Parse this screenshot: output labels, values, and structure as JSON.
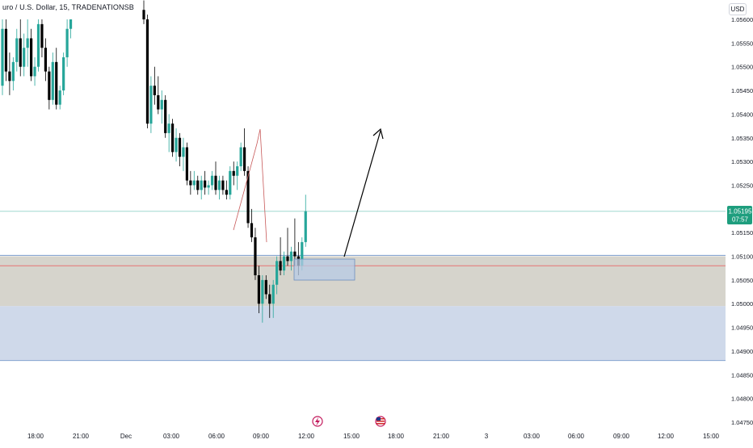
{
  "header": {
    "symbol_title": "uro / U.S. Dollar, 15, TRADENATIONSB",
    "currency": "USD"
  },
  "colors": {
    "up": "#26a69a",
    "down": "#000000",
    "current_price_line": "#9fd8cf",
    "current_price_badge": "#1e9e7e",
    "support_zone_fill": "#cfd9ea",
    "grey_zone_fill": "#d6d4cc",
    "red_line": "#e57373",
    "entry_box_fill": "#b7cbe6",
    "entry_box_stroke": "#6f8fbf",
    "arrow": "#000000"
  },
  "price_axis": {
    "labels": [
      "1.05600",
      "1.05550",
      "1.05500",
      "1.05450",
      "1.05400",
      "1.05350",
      "1.05300",
      "1.05250",
      "1.05150",
      "1.05100",
      "1.05050",
      "1.05000",
      "1.04950",
      "1.04900",
      "1.04850",
      "1.04800",
      "1.04750"
    ],
    "current_price": "1.05195",
    "countdown": "07:57"
  },
  "time_axis": {
    "labels": [
      "18:00",
      "21:00",
      "Dec",
      "03:00",
      "06:00",
      "09:00",
      "12:00",
      "15:00",
      "18:00",
      "21:00",
      "3",
      "03:00",
      "06:00",
      "09:00",
      "12:00",
      "15:00"
    ]
  },
  "event_icons": [
    "lightning-event-icon",
    "us-flag-event-icon"
  ],
  "chart_data": {
    "type": "candlestick",
    "instrument": "uro / U.S. Dollar",
    "interval": "15",
    "ylim": [
      1.0472,
      1.0565
    ],
    "current_price": 1.05195,
    "levels": {
      "support_zone": [
        1.0488,
        1.04995
      ],
      "grey_zone": [
        1.04995,
        1.051
      ],
      "red_line": 1.0508,
      "upper_blue_line": 1.05102
    },
    "candles": [
      [
        1.0546,
        1.056,
        1.0544,
        1.0558
      ],
      [
        1.0558,
        1.056,
        1.0547,
        1.0549
      ],
      [
        1.0549,
        1.0553,
        1.0544,
        1.0547
      ],
      [
        1.0547,
        1.0552,
        1.0545,
        1.0551
      ],
      [
        1.0551,
        1.0558,
        1.0549,
        1.0556
      ],
      [
        1.0556,
        1.056,
        1.0548,
        1.055
      ],
      [
        1.055,
        1.0557,
        1.0548,
        1.0554
      ],
      [
        1.0554,
        1.056,
        1.055,
        1.0556
      ],
      [
        1.0556,
        1.0558,
        1.0547,
        1.0548
      ],
      [
        1.0548,
        1.0552,
        1.0546,
        1.055
      ],
      [
        1.055,
        1.056,
        1.0549,
        1.0559
      ],
      [
        1.0559,
        1.056,
        1.0552,
        1.0554
      ],
      [
        1.0554,
        1.0556,
        1.0547,
        1.0549
      ],
      [
        1.0549,
        1.055,
        1.0541,
        1.0543
      ],
      [
        1.0543,
        1.0553,
        1.0542,
        1.0551
      ],
      [
        1.0551,
        1.0554,
        1.0541,
        1.0542
      ],
      [
        1.0542,
        1.0546,
        1.0541,
        1.0545
      ],
      [
        1.0545,
        1.0553,
        1.0544,
        1.0552
      ],
      [
        1.0552,
        1.056,
        1.055,
        1.0558
      ],
      [
        1.0558,
        1.056,
        1.0556,
        1.056
      ],
      [
        1.0562,
        1.0564,
        1.0559,
        1.056
      ],
      [
        1.056,
        1.0561,
        1.0537,
        1.0538
      ],
      [
        1.0538,
        1.0548,
        1.0536,
        1.0546
      ],
      [
        1.0546,
        1.055,
        1.0542,
        1.0544
      ],
      [
        1.0544,
        1.0548,
        1.054,
        1.0541
      ],
      [
        1.0541,
        1.0545,
        1.0538,
        1.0543
      ],
      [
        1.0543,
        1.0544,
        1.0535,
        1.0536
      ],
      [
        1.0536,
        1.054,
        1.0532,
        1.0538
      ],
      [
        1.0538,
        1.0539,
        1.0531,
        1.0532
      ],
      [
        1.0532,
        1.0537,
        1.053,
        1.0535
      ],
      [
        1.0535,
        1.0536,
        1.0529,
        1.0531
      ],
      [
        1.0531,
        1.0535,
        1.0528,
        1.0533
      ],
      [
        1.0533,
        1.0534,
        1.0525,
        1.0526
      ],
      [
        1.0526,
        1.0528,
        1.0523,
        1.0525
      ],
      [
        1.0525,
        1.0528,
        1.0524,
        1.0526
      ],
      [
        1.0526,
        1.0527,
        1.0523,
        1.0524
      ],
      [
        1.0524,
        1.0527,
        1.0522,
        1.0526
      ],
      [
        1.0526,
        1.0528,
        1.0523,
        1.05245
      ],
      [
        1.05245,
        1.0526,
        1.0523,
        1.0525
      ],
      [
        1.0525,
        1.0528,
        1.0524,
        1.0527
      ],
      [
        1.0527,
        1.053,
        1.0523,
        1.0524
      ],
      [
        1.0524,
        1.0527,
        1.0522,
        1.0526
      ],
      [
        1.0526,
        1.0527,
        1.0523,
        1.0524
      ],
      [
        1.0524,
        1.0526,
        1.0522,
        1.0523
      ],
      [
        1.0523,
        1.0529,
        1.0522,
        1.0528
      ],
      [
        1.0528,
        1.053,
        1.0525,
        1.0527
      ],
      [
        1.0527,
        1.053,
        1.0524,
        1.0529
      ],
      [
        1.0529,
        1.0534,
        1.0528,
        1.0533
      ],
      [
        1.0533,
        1.0537,
        1.0527,
        1.0528
      ],
      [
        1.0528,
        1.0529,
        1.0516,
        1.0517
      ],
      [
        1.0517,
        1.052,
        1.0513,
        1.0514
      ],
      [
        1.0514,
        1.0516,
        1.0505,
        1.0506
      ],
      [
        1.0506,
        1.0508,
        1.0498,
        1.05
      ],
      [
        1.05,
        1.0506,
        1.0496,
        1.0505
      ],
      [
        1.0505,
        1.0506,
        1.0501,
        1.0502
      ],
      [
        1.0502,
        1.0504,
        1.0497,
        1.05
      ],
      [
        1.05,
        1.0505,
        1.0497,
        1.0504
      ],
      [
        1.0504,
        1.051,
        1.0502,
        1.0509
      ],
      [
        1.0509,
        1.0514,
        1.0506,
        1.0507
      ],
      [
        1.0507,
        1.0511,
        1.0506,
        1.051
      ],
      [
        1.051,
        1.0516,
        1.0508,
        1.0509
      ],
      [
        1.0509,
        1.0512,
        1.0507,
        1.0511
      ],
      [
        1.0511,
        1.0518,
        1.0508,
        1.051
      ],
      [
        1.051,
        1.0513,
        1.0506,
        1.0508
      ],
      [
        1.0508,
        1.0514,
        1.0507,
        1.0513
      ],
      [
        1.0513,
        1.0523,
        1.0512,
        1.05195
      ]
    ],
    "segment_starts": {
      "second_segment_index": 20
    }
  }
}
